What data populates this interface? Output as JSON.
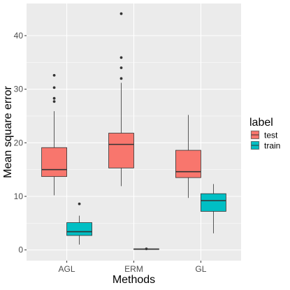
{
  "chart_data": {
    "type": "boxplot",
    "title": "",
    "xlabel": "Methods",
    "ylabel": "Mean square error",
    "categories": [
      "AGL",
      "ERM",
      "GL"
    ],
    "ylim": [
      -2,
      46
    ],
    "y_ticks": [
      0,
      10,
      20,
      30,
      40
    ],
    "grid": true,
    "legend": {
      "title": "label",
      "placement": "right",
      "entries": [
        {
          "name": "test",
          "color": "#F8766D"
        },
        {
          "name": "train",
          "color": "#00BFC4"
        }
      ]
    },
    "series": [
      {
        "name": "test",
        "color": "#F8766D",
        "boxes": [
          {
            "category": "AGL",
            "min": 10.2,
            "q1": 13.7,
            "median": 15.0,
            "q3": 19.1,
            "max": 25.9,
            "outliers": [
              27.7,
              28.3,
              30.3,
              32.6
            ]
          },
          {
            "category": "ERM",
            "min": 11.9,
            "q1": 15.3,
            "median": 19.7,
            "q3": 21.8,
            "max": 31.2,
            "outliers": [
              32.0,
              34.0,
              35.9,
              44.1
            ]
          },
          {
            "category": "GL",
            "min": 9.7,
            "q1": 13.5,
            "median": 14.6,
            "q3": 18.6,
            "max": 25.2,
            "outliers": []
          }
        ]
      },
      {
        "name": "train",
        "color": "#00BFC4",
        "boxes": [
          {
            "category": "AGL",
            "min": 1.0,
            "q1": 2.7,
            "median": 3.4,
            "q3": 5.1,
            "max": 6.4,
            "outliers": [
              8.6
            ]
          },
          {
            "category": "ERM",
            "min": 0.1,
            "q1": 0.1,
            "median": 0.15,
            "q3": 0.2,
            "max": 0.2,
            "outliers": [
              0.2
            ]
          },
          {
            "category": "GL",
            "min": 3.1,
            "q1": 7.2,
            "median": 9.2,
            "q3": 10.5,
            "max": 12.3,
            "outliers": []
          }
        ]
      }
    ]
  }
}
